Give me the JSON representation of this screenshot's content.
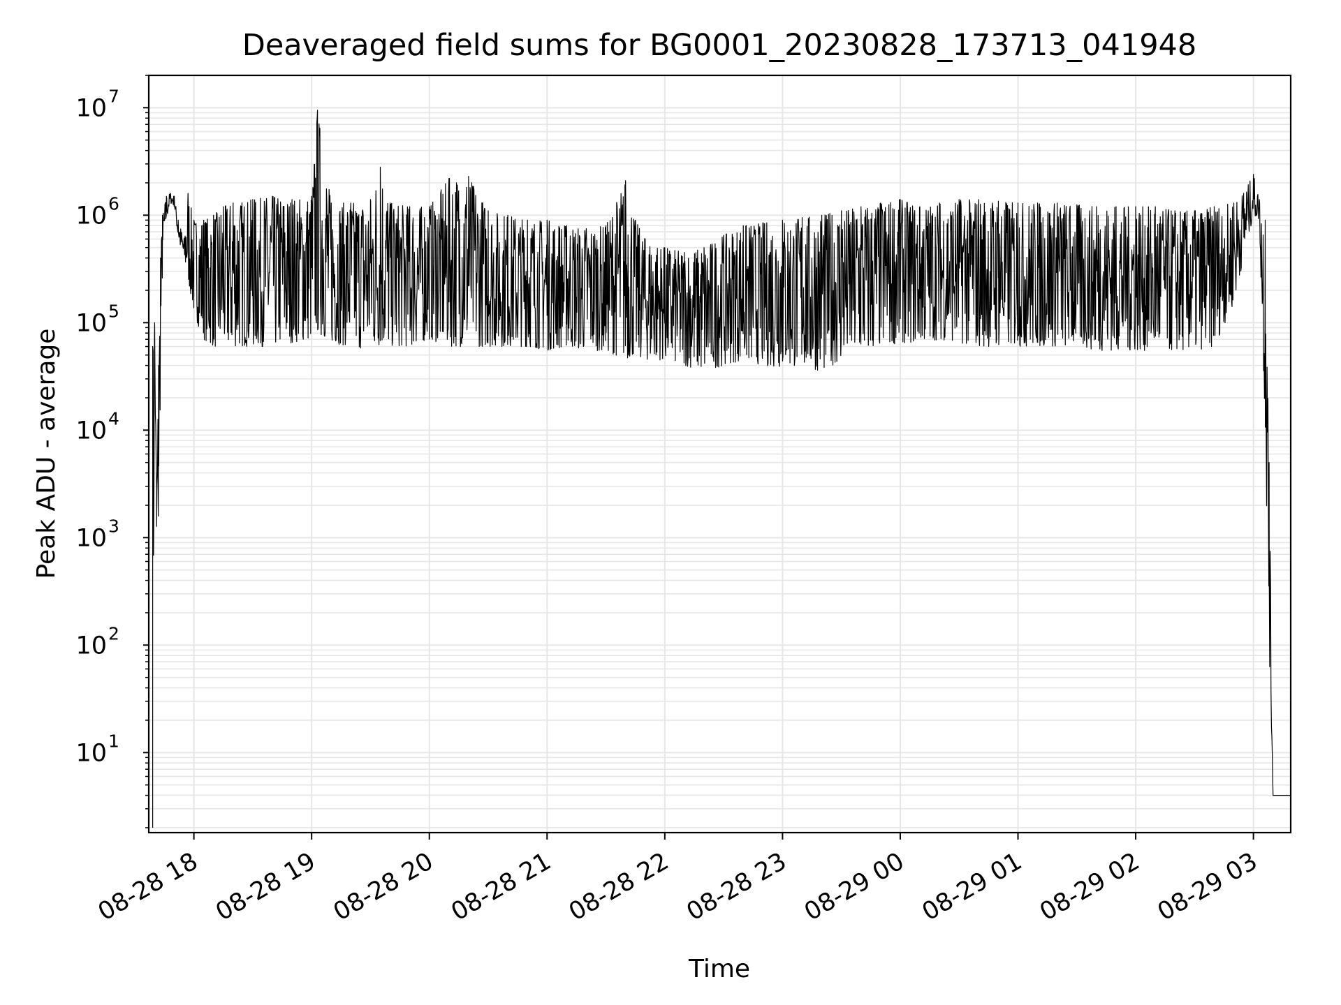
{
  "chart_data": {
    "type": "line",
    "title": "Deaveraged field sums for BG0001_20230828_173713_041948",
    "xlabel": "Time",
    "ylabel": "Peak ADU - average",
    "yscale": "log",
    "ylim": [
      1.8,
      20000000
    ],
    "xlim": [
      "08-28 17:37",
      "08-29 03:19"
    ],
    "grid": true,
    "line_color": "#000000",
    "x_ticks": [
      "08-28 18",
      "08-28 19",
      "08-28 20",
      "08-28 21",
      "08-28 22",
      "08-28 23",
      "08-29 00",
      "08-29 01",
      "08-29 02",
      "08-29 03"
    ],
    "y_ticks": [
      {
        "value": 10,
        "base": "10",
        "exp": "1"
      },
      {
        "value": 100,
        "base": "10",
        "exp": "2"
      },
      {
        "value": 1000,
        "base": "10",
        "exp": "3"
      },
      {
        "value": 10000,
        "base": "10",
        "exp": "4"
      },
      {
        "value": 100000,
        "base": "10",
        "exp": "5"
      },
      {
        "value": 1000000,
        "base": "10",
        "exp": "6"
      },
      {
        "value": 10000000,
        "base": "10",
        "exp": "7"
      }
    ],
    "series": [
      {
        "x": [
          "08-28 17:39",
          "08-28 17:40",
          "08-28 17:41",
          "08-28 17:42",
          "08-28 17:43",
          "08-28 17:44",
          "08-28 17:46",
          "08-28 17:48",
          "08-28 17:50",
          "08-28 17:52",
          "08-28 17:55",
          "08-28 17:57",
          "08-28 18:00",
          "08-28 18:05",
          "08-28 18:10",
          "08-28 18:15",
          "08-28 18:20",
          "08-28 18:30",
          "08-28 18:40",
          "08-28 18:50",
          "08-28 19:00",
          "08-28 19:03",
          "08-28 19:10",
          "08-28 19:20",
          "08-28 19:30",
          "08-28 19:35",
          "08-28 19:40",
          "08-28 19:50",
          "08-28 20:00",
          "08-28 20:10",
          "08-28 20:20",
          "08-28 20:30",
          "08-28 20:40",
          "08-28 20:50",
          "08-28 21:00",
          "08-28 21:10",
          "08-28 21:20",
          "08-28 21:30",
          "08-28 21:40",
          "08-28 21:45",
          "08-28 21:50",
          "08-28 22:00",
          "08-28 22:10",
          "08-28 22:20",
          "08-28 22:30",
          "08-28 22:40",
          "08-28 22:50",
          "08-28 23:00",
          "08-28 23:10",
          "08-28 23:20",
          "08-28 23:30",
          "08-28 23:40",
          "08-28 23:50",
          "08-29 00:00",
          "08-29 00:10",
          "08-29 00:20",
          "08-29 00:30",
          "08-29 00:40",
          "08-29 00:50",
          "08-29 01:00",
          "08-29 01:10",
          "08-29 01:20",
          "08-29 01:30",
          "08-29 01:40",
          "08-29 01:50",
          "08-29 02:00",
          "08-29 02:10",
          "08-29 02:20",
          "08-29 02:30",
          "08-29 02:40",
          "08-29 02:50",
          "08-29 02:55",
          "08-29 03:00",
          "08-29 03:03",
          "08-29 03:06",
          "08-29 03:08",
          "08-29 03:10",
          "08-29 03:12",
          "08-29 03:19"
        ],
        "lo": [
          2,
          60000,
          400,
          1000,
          30000,
          300000,
          900000,
          1300000,
          1200000,
          600000,
          350000,
          250000,
          120000,
          70000,
          60000,
          55000,
          60000,
          60000,
          60000,
          65000,
          70000,
          80000,
          65000,
          60000,
          55000,
          60000,
          60000,
          60000,
          70000,
          60000,
          60000,
          60000,
          60000,
          60000,
          55000,
          60000,
          55000,
          55000,
          45000,
          50000,
          45000,
          45000,
          40000,
          35000,
          40000,
          45000,
          40000,
          38000,
          40000,
          35000,
          45000,
          50000,
          60000,
          65000,
          65000,
          70000,
          65000,
          60000,
          60000,
          60000,
          60000,
          60000,
          60000,
          55000,
          55000,
          55000,
          55000,
          55000,
          55000,
          60000,
          150000,
          400000,
          1000000,
          900000,
          10000,
          100,
          4,
          4,
          4
        ],
        "hi": [
          60000,
          100000,
          3000,
          40000,
          400000,
          1000000,
          1500000,
          1600000,
          1500000,
          900000,
          600000,
          1600000,
          900000,
          900000,
          1000000,
          1200000,
          1300000,
          1400000,
          1500000,
          1400000,
          1500000,
          9500000,
          1300000,
          1300000,
          1400000,
          2800000,
          1300000,
          1200000,
          1200000,
          2200000,
          2300000,
          1100000,
          1000000,
          900000,
          900000,
          800000,
          750000,
          800000,
          2100000,
          900000,
          600000,
          500000,
          450000,
          500000,
          650000,
          800000,
          850000,
          900000,
          950000,
          1000000,
          1100000,
          1200000,
          1300000,
          1400000,
          1200000,
          1300000,
          1400000,
          1400000,
          1350000,
          1300000,
          1300000,
          1300000,
          1250000,
          1200000,
          1200000,
          1200000,
          1200000,
          1100000,
          1100000,
          1200000,
          1300000,
          1600000,
          2400000,
          1400000,
          900000,
          5000,
          4,
          4,
          4
        ]
      }
    ]
  }
}
